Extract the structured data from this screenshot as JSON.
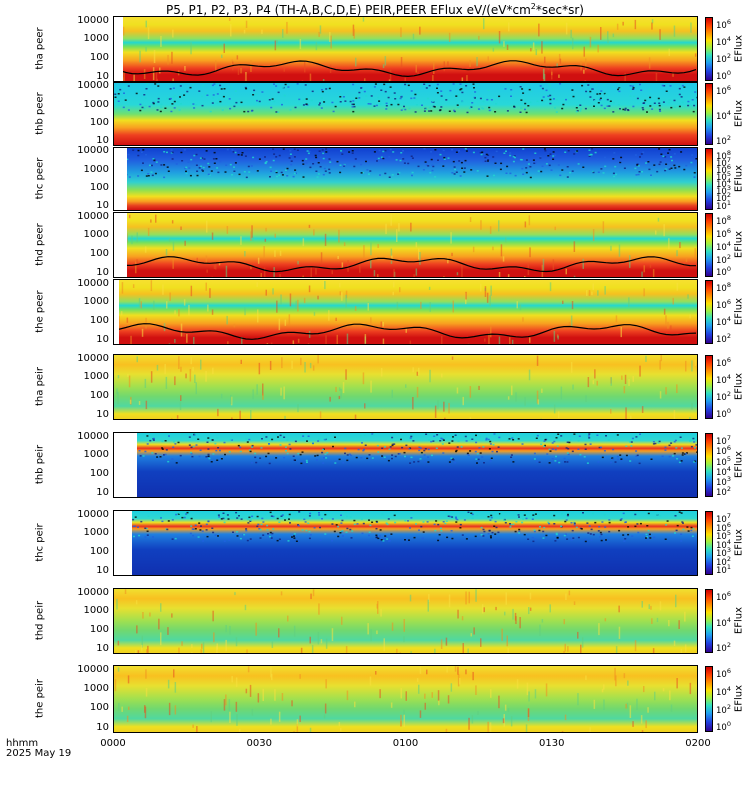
{
  "title": "P5, P1, P2, P3, P4 (TH-A,B,C,D,E) PEIR,PEER EFlux eV/(eV*cm",
  "title_sup": "2",
  "title_tail": "*sec*sr)",
  "time_axis": {
    "label": "hhmm",
    "date": "2025 May 19",
    "ticks": [
      "0000",
      "0030",
      "0100",
      "0130",
      "0200"
    ]
  },
  "colorbar_label": "EFlux",
  "chart_data": {
    "type": "heatmap",
    "x_range_hhmm": [
      "0000",
      "0200"
    ],
    "panels": [
      {
        "label": "tha peer",
        "y_ticks": [
          "10000",
          "1000",
          "100",
          "10"
        ],
        "cbar_ticks": [
          "10^6",
          "10^4",
          "10^2",
          "10^0"
        ],
        "start_frac": 0.015,
        "style": "peer-red",
        "has_line": true
      },
      {
        "label": "thb peer",
        "y_ticks": [
          "10000",
          "1000",
          "100",
          "10"
        ],
        "cbar_ticks": [
          "10^6",
          "10^4",
          "10^2"
        ],
        "start_frac": 0.0,
        "style": "peer-cyan",
        "has_line": false
      },
      {
        "label": "thc peer",
        "y_ticks": [
          "10000",
          "1000",
          "100",
          "10"
        ],
        "cbar_ticks": [
          "10^8",
          "10^7",
          "10^6",
          "10^5",
          "10^4",
          "10^3",
          "10^2",
          "10^1"
        ],
        "start_frac": 0.022,
        "style": "peer-blue",
        "has_line": false
      },
      {
        "label": "thd peer",
        "y_ticks": [
          "10000",
          "1000",
          "100",
          "10"
        ],
        "cbar_ticks": [
          "10^8",
          "10^6",
          "10^4",
          "10^2",
          "10^0"
        ],
        "start_frac": 0.022,
        "style": "peer-red",
        "has_line": true
      },
      {
        "label": "the peer",
        "y_ticks": [
          "10000",
          "1000",
          "100",
          "10"
        ],
        "cbar_ticks": [
          "10^8",
          "10^6",
          "10^4",
          "10^2"
        ],
        "start_frac": 0.008,
        "style": "peer-red",
        "has_line": true
      },
      {
        "label": "tha peir",
        "y_ticks": [
          "10000",
          "1000",
          "100",
          "10"
        ],
        "cbar_ticks": [
          "10^6",
          "10^4",
          "10^2",
          "10^0"
        ],
        "start_frac": 0.0,
        "style": "peir-green",
        "has_line": false
      },
      {
        "label": "thb peir",
        "y_ticks": [
          "10000",
          "1000",
          "100",
          "10"
        ],
        "cbar_ticks": [
          "10^7",
          "10^6",
          "10^5",
          "10^4",
          "10^3",
          "10^2"
        ],
        "start_frac": 0.04,
        "style": "peir-blue",
        "has_line": false
      },
      {
        "label": "thc peir",
        "y_ticks": [
          "10000",
          "1000",
          "100",
          "10"
        ],
        "cbar_ticks": [
          "10^7",
          "10^6",
          "10^5",
          "10^4",
          "10^3",
          "10^2",
          "10^1"
        ],
        "start_frac": 0.03,
        "style": "peir-blue",
        "has_line": false
      },
      {
        "label": "thd peir",
        "y_ticks": [
          "10000",
          "1000",
          "100",
          "10"
        ],
        "cbar_ticks": [
          "10^6",
          "10^4",
          "10^2"
        ],
        "start_frac": 0.0,
        "style": "peir-green",
        "has_line": false
      },
      {
        "label": "the peir",
        "y_ticks": [
          "10000",
          "1000",
          "100",
          "10"
        ],
        "cbar_ticks": [
          "10^6",
          "10^4",
          "10^2",
          "10^0"
        ],
        "start_frac": 0.0,
        "style": "peir-green",
        "has_line": false
      }
    ]
  }
}
